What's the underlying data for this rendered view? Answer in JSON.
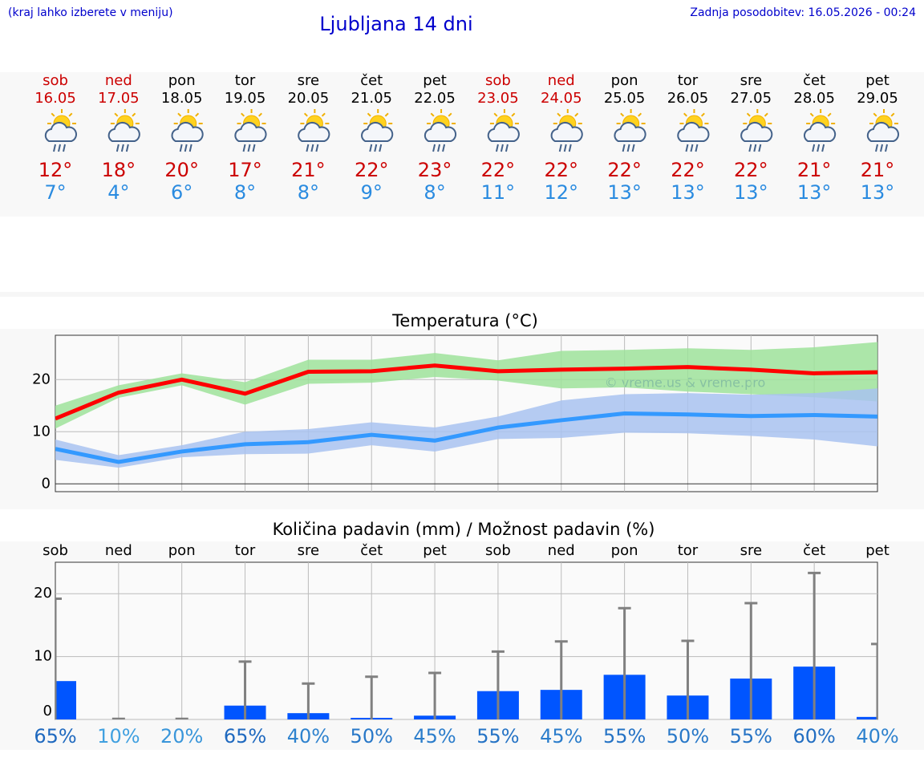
{
  "header": {
    "note": "(kraj lahko izberete v meniju)",
    "title": "Ljubljana 14 dni",
    "updated": "Zadnja posodobitev: 16.05.2026 - 00:24"
  },
  "days": [
    {
      "weekday": "sob",
      "date": "16.05",
      "high": "12°",
      "low": "7°",
      "color": "#cc0000"
    },
    {
      "weekday": "ned",
      "date": "17.05",
      "high": "18°",
      "low": "4°",
      "color": "#cc0000"
    },
    {
      "weekday": "pon",
      "date": "18.05",
      "high": "20°",
      "low": "6°",
      "color": "#000000"
    },
    {
      "weekday": "tor",
      "date": "19.05",
      "high": "17°",
      "low": "8°",
      "color": "#000000"
    },
    {
      "weekday": "sre",
      "date": "20.05",
      "high": "21°",
      "low": "8°",
      "color": "#000000"
    },
    {
      "weekday": "čet",
      "date": "21.05",
      "high": "22°",
      "low": "9°",
      "color": "#000000"
    },
    {
      "weekday": "pet",
      "date": "22.05",
      "high": "23°",
      "low": "8°",
      "color": "#000000"
    },
    {
      "weekday": "sob",
      "date": "23.05",
      "high": "22°",
      "low": "11°",
      "color": "#cc0000"
    },
    {
      "weekday": "ned",
      "date": "24.05",
      "high": "22°",
      "low": "12°",
      "color": "#cc0000"
    },
    {
      "weekday": "pon",
      "date": "25.05",
      "high": "22°",
      "low": "13°",
      "color": "#000000"
    },
    {
      "weekday": "tor",
      "date": "26.05",
      "high": "22°",
      "low": "13°",
      "color": "#000000"
    },
    {
      "weekday": "sre",
      "date": "27.05",
      "high": "22°",
      "low": "13°",
      "color": "#000000"
    },
    {
      "weekday": "čet",
      "date": "28.05",
      "high": "21°",
      "low": "13°",
      "color": "#000000"
    },
    {
      "weekday": "pet",
      "date": "29.05",
      "high": "21°",
      "low": "13°",
      "color": "#000000"
    }
  ],
  "chart_data": [
    {
      "type": "line",
      "title": "Temperatura (°C)",
      "ylim": [
        -1.5,
        28.5
      ],
      "yticks": [
        0,
        10,
        20
      ],
      "grid": true,
      "annotation": "© vreme.us & vreme.pro",
      "annotation_color": "#0000cc",
      "bands": [
        {
          "color": "#9ee29a",
          "upper": [
            15,
            18.9,
            21.2,
            19.5,
            23.8,
            23.8,
            25.1,
            23.7,
            25.5,
            25.7,
            26,
            25.7,
            26.2,
            27.2
          ],
          "lower": [
            10.6,
            16.5,
            18.9,
            15.2,
            19.2,
            19.4,
            20.5,
            19.8,
            18.3,
            18.5,
            17.7,
            17.2,
            16.6,
            15.8
          ]
        },
        {
          "color": "#a8c2f0",
          "upper": [
            8.5,
            5.5,
            7.4,
            10,
            10.5,
            11.8,
            10.8,
            12.9,
            16,
            17.2,
            17.4,
            17.1,
            17.4,
            18.3
          ],
          "lower": [
            4.6,
            3.1,
            5.1,
            5.7,
            5.8,
            7.4,
            6.2,
            8.6,
            8.8,
            9.8,
            9.7,
            9.2,
            8.5,
            7.2
          ]
        }
      ],
      "series": [
        {
          "color": "#ff0000",
          "values": [
            12.5,
            17.5,
            20,
            17.3,
            21.5,
            21.6,
            22.7,
            21.6,
            21.9,
            22.1,
            22.4,
            21.9,
            21.2,
            21.4
          ]
        },
        {
          "color": "#3399ff",
          "values": [
            6.7,
            4.2,
            6.2,
            7.6,
            8.0,
            9.4,
            8.3,
            10.8,
            12.2,
            13.5,
            13.3,
            13.0,
            13.2,
            12.9
          ]
        }
      ]
    },
    {
      "type": "bar",
      "title": "Količina padavin (mm) / Možnost padavin (%)",
      "ylim": [
        0,
        25
      ],
      "yticks": [
        0,
        10,
        20
      ],
      "grid": true,
      "categories": [
        "sob",
        "ned",
        "pon",
        "tor",
        "sre",
        "čet",
        "pet",
        "sob",
        "ned",
        "pon",
        "tor",
        "sre",
        "čet",
        "pet"
      ],
      "color": "#0055ff",
      "error_color": "#808080",
      "values": [
        6.1,
        0,
        0,
        2.2,
        1.0,
        0.25,
        0.6,
        4.5,
        4.7,
        7.1,
        3.8,
        6.5,
        8.4,
        0.4
      ],
      "max": [
        19.2,
        0.1,
        0.1,
        9.2,
        5.7,
        6.8,
        7.4,
        10.8,
        12.4,
        17.7,
        12.5,
        18.5,
        23.3,
        12.0
      ],
      "chance": {
        "values": [
          65,
          10,
          20,
          65,
          40,
          50,
          45,
          55,
          45,
          55,
          50,
          55,
          60,
          40
        ],
        "value_labels": [
          "65%",
          "10%",
          "20%",
          "65%",
          "40%",
          "50%",
          "45%",
          "55%",
          "45%",
          "55%",
          "50%",
          "55%",
          "60%",
          "40%"
        ]
      }
    }
  ]
}
